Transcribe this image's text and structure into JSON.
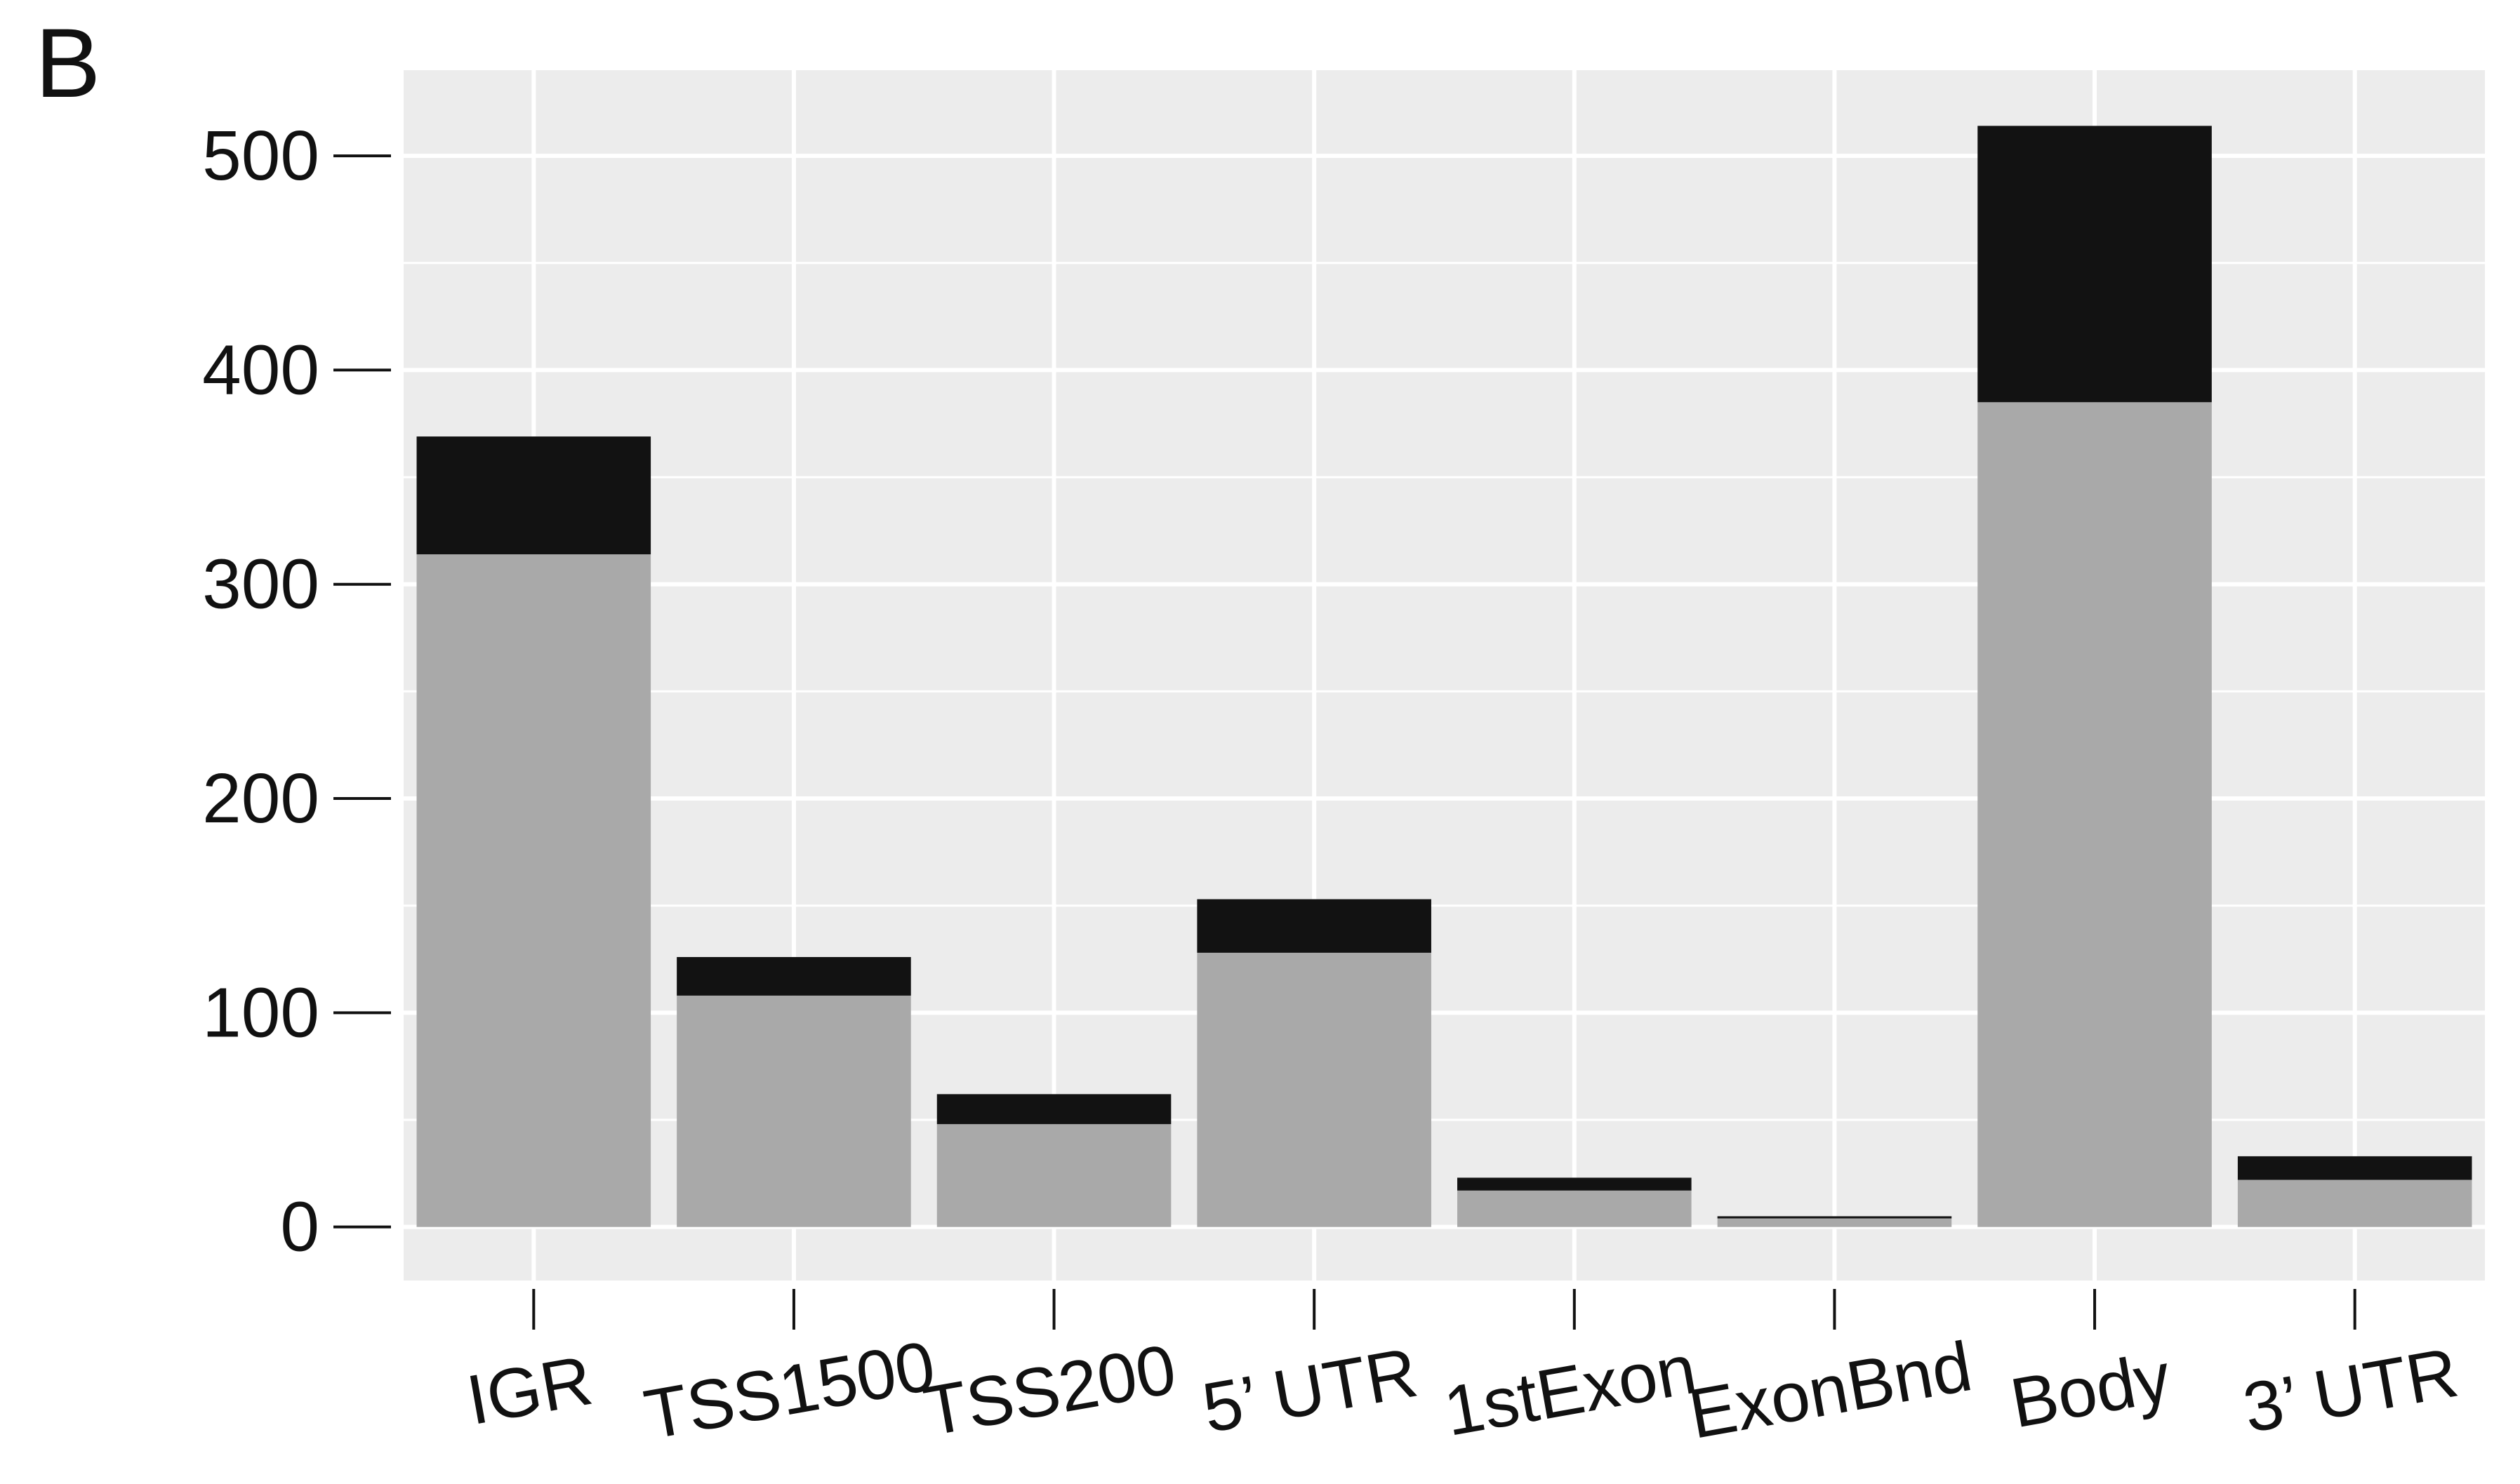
{
  "panel_label": "B",
  "colors": {
    "panel_background": "#ececec",
    "gridline": "#ffffff",
    "axis_tick": "#111111",
    "lower_segment": "#a9a9a9",
    "upper_segment": "#121212"
  },
  "chart_data": {
    "type": "bar",
    "stacked": true,
    "title": "",
    "xlabel": "",
    "ylabel": "",
    "ylim": [
      -25,
      540
    ],
    "yticks": [
      0,
      100,
      200,
      300,
      400,
      500
    ],
    "ytick_labels": [
      "0",
      "100",
      "200",
      "300",
      "400",
      "500"
    ],
    "categories": [
      "IGR",
      "TSS1500",
      "TSS200",
      "5’ UTR",
      "1stExon",
      "ExonBnd",
      "Body",
      "3’ UTR"
    ],
    "series": [
      {
        "color": "#a9a9a9",
        "values": [
          314,
          108,
          48,
          128,
          17,
          4,
          385,
          22
        ]
      },
      {
        "color": "#121212",
        "values": [
          55,
          18,
          14,
          25,
          6,
          1,
          129,
          11
        ]
      }
    ],
    "grid": true,
    "legend": "none"
  }
}
